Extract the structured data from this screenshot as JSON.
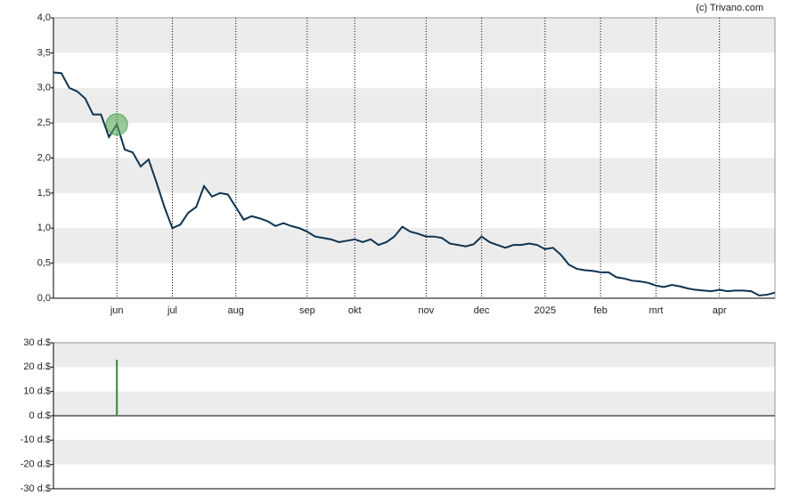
{
  "chart_data": [
    {
      "type": "line",
      "source": "(c) Trivano.com",
      "categories": [
        null,
        null,
        null,
        null,
        null,
        null,
        null,
        null,
        "jun",
        null,
        null,
        null,
        null,
        null,
        null,
        "jul",
        null,
        null,
        null,
        null,
        null,
        null,
        null,
        "aug",
        null,
        null,
        null,
        null,
        null,
        null,
        null,
        null,
        "sep",
        null,
        null,
        null,
        null,
        null,
        "okt",
        null,
        null,
        null,
        null,
        null,
        null,
        null,
        null,
        "nov",
        null,
        null,
        null,
        null,
        null,
        null,
        "dec",
        null,
        null,
        null,
        null,
        null,
        null,
        null,
        "2025",
        null,
        null,
        null,
        null,
        null,
        null,
        "feb",
        null,
        null,
        null,
        null,
        null,
        null,
        "mrt",
        null,
        null,
        null,
        null,
        null,
        null,
        null,
        "apr",
        null,
        null,
        null,
        null,
        null,
        null,
        null
      ],
      "series": [
        {
          "color": "#0d3350",
          "values": [
            3.22,
            3.21,
            3.0,
            2.95,
            2.85,
            2.62,
            2.62,
            2.3,
            2.48,
            2.12,
            2.08,
            1.88,
            1.98,
            1.65,
            1.3,
            1.0,
            1.05,
            1.22,
            1.3,
            1.6,
            1.45,
            1.5,
            1.48,
            1.3,
            1.12,
            1.17,
            1.14,
            1.1,
            1.03,
            1.07,
            1.03,
            1.0,
            0.95,
            0.88,
            0.86,
            0.84,
            0.8,
            0.82,
            0.84,
            0.8,
            0.84,
            0.76,
            0.8,
            0.88,
            1.02,
            0.95,
            0.92,
            0.88,
            0.88,
            0.86,
            0.78,
            0.76,
            0.74,
            0.77,
            0.88,
            0.8,
            0.76,
            0.72,
            0.76,
            0.76,
            0.78,
            0.76,
            0.7,
            0.72,
            0.62,
            0.48,
            0.42,
            0.4,
            0.39,
            0.37,
            0.37,
            0.3,
            0.28,
            0.25,
            0.24,
            0.22,
            0.18,
            0.16,
            0.19,
            0.17,
            0.14,
            0.12,
            0.11,
            0.1,
            0.12,
            0.1,
            0.11,
            0.11,
            0.1,
            0.04,
            0.05,
            0.08
          ]
        }
      ],
      "marker_color": "#5aa85a",
      "ylim": [
        0,
        4
      ],
      "yticks": [
        {
          "value": 0,
          "label": "0,0"
        },
        {
          "value": 0.5,
          "label": "0,5"
        },
        {
          "value": 1,
          "label": "1,0"
        },
        {
          "value": 1.5,
          "label": "1,5"
        },
        {
          "value": 2,
          "label": "2,0"
        },
        {
          "value": 2.5,
          "label": "2,5"
        },
        {
          "value": 3,
          "label": "3,0"
        },
        {
          "value": 3.5,
          "label": "3,5"
        },
        {
          "value": 4,
          "label": "4,0"
        }
      ]
    },
    {
      "type": "bar",
      "color": "#2e8b3e",
      "values": [
        null,
        null,
        null,
        null,
        null,
        null,
        null,
        null,
        23,
        null,
        null,
        null,
        null,
        null,
        null,
        null,
        null,
        null,
        null,
        null,
        null,
        null,
        null,
        null,
        null,
        null,
        null,
        null,
        null,
        null,
        null,
        null,
        null,
        null,
        null,
        null,
        null,
        null,
        null,
        null,
        null,
        null,
        null,
        null,
        null,
        null,
        null,
        null,
        null,
        null,
        null,
        null,
        null,
        null,
        null,
        null,
        null,
        null,
        null,
        null,
        null,
        null,
        null,
        null,
        null,
        null,
        null,
        null,
        null,
        null,
        null,
        null,
        null,
        null,
        null,
        null,
        null,
        null,
        null,
        null,
        null,
        null,
        null,
        null,
        null,
        null,
        null,
        null,
        null,
        null,
        null,
        null
      ],
      "ylim": [
        -30,
        30
      ],
      "yticks": [
        {
          "value": -30,
          "label": "-30 d.$"
        },
        {
          "value": -20,
          "label": "-20 d.$"
        },
        {
          "value": -10,
          "label": "-10 d.$"
        },
        {
          "value": 0,
          "label": "0 d.$"
        },
        {
          "value": 10,
          "label": "10 d.$"
        },
        {
          "value": 20,
          "label": "20 d.$"
        },
        {
          "value": 30,
          "label": "30 d.$"
        }
      ]
    }
  ]
}
